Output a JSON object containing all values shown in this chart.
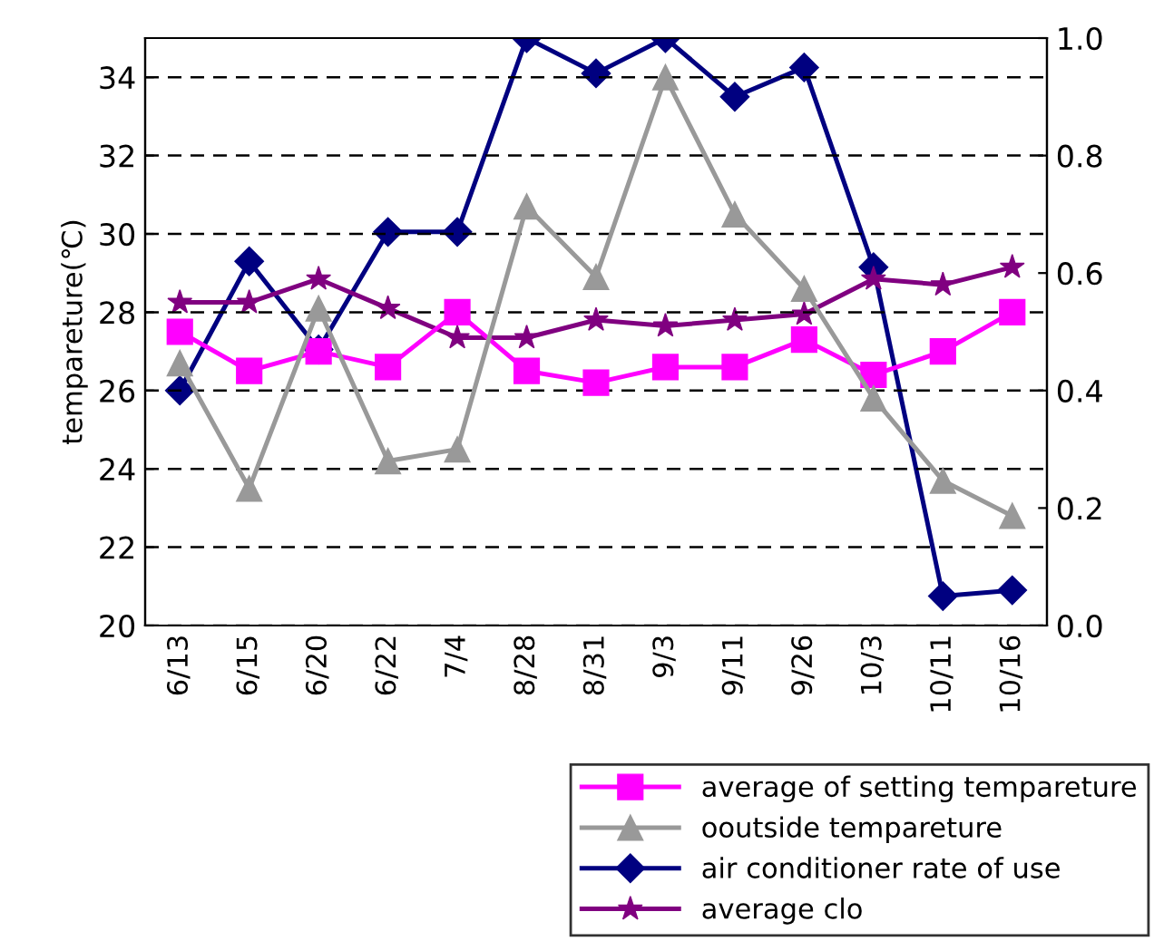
{
  "chart_data": {
    "type": "line",
    "ylabel": "tempareture(℃)",
    "categories": [
      "6/13",
      "6/15",
      "6/20",
      "6/22",
      "7/4",
      "8/28",
      "8/31",
      "9/3",
      "9/11",
      "9/26",
      "10/3",
      "10/11",
      "10/16"
    ],
    "series": [
      {
        "name": "average of setting tempareture",
        "color": "#ff00ff",
        "marker": "square",
        "values": [
          27.5,
          26.5,
          27.0,
          26.6,
          28.0,
          26.5,
          26.2,
          26.6,
          26.6,
          27.3,
          26.4,
          27.0,
          28.0
        ]
      },
      {
        "name": "ooutside tempareture",
        "color": "#999999",
        "marker": "triangle",
        "values": [
          26.7,
          23.5,
          28.1,
          24.2,
          24.5,
          30.7,
          28.9,
          34.0,
          30.5,
          28.6,
          25.8,
          23.7,
          22.8
        ]
      },
      {
        "name": "air conditioner rate of use",
        "color": "#000080",
        "marker": "diamond",
        "axis": "y2",
        "values": [
          0.4,
          0.62,
          0.47,
          0.67,
          0.67,
          1.0,
          0.94,
          1.0,
          0.9,
          0.95,
          0.61,
          0.05,
          0.06
        ]
      },
      {
        "name": "average clo",
        "color": "#800080",
        "marker": "star",
        "axis": "y2",
        "values": [
          0.55,
          0.55,
          0.59,
          0.54,
          0.49,
          0.49,
          0.52,
          0.51,
          0.52,
          0.53,
          0.59,
          0.58,
          0.61
        ]
      }
    ],
    "ylim": [
      20,
      35
    ],
    "yticks": [
      20,
      22,
      24,
      26,
      28,
      30,
      32,
      34
    ],
    "y2lim": [
      0,
      1.0
    ],
    "y2ticks": [
      {
        "value": 0,
        "label": "0.0"
      },
      {
        "value": 0.2,
        "label": "0.2"
      },
      {
        "value": 0.4,
        "label": "0.4"
      },
      {
        "value": 0.6,
        "label": "0.6"
      },
      {
        "value": 0.8,
        "label": "0.8"
      },
      {
        "value": 1.0,
        "label": "1.0"
      }
    ],
    "grid": "y",
    "legend": "bottom right"
  }
}
